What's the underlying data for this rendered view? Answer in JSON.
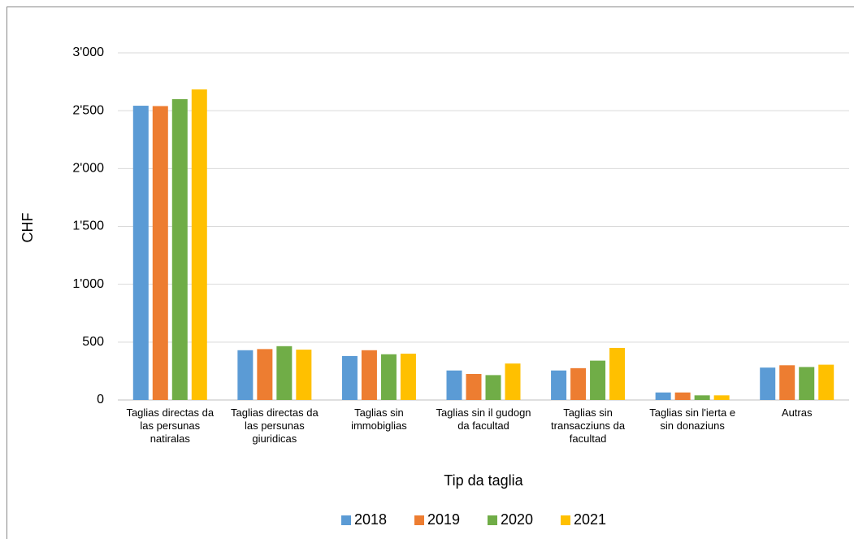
{
  "chart_data": {
    "type": "bar",
    "x_label": "Tip da taglia",
    "y_label": "CHF",
    "categories": [
      "Taglias directas da las persunas natiralas",
      "Taglias directas da las persunas giuridicas",
      "Taglias sin immobiglias",
      "Taglias sin il gudogn da facultad",
      "Taglias sin transacziuns da facultad",
      "Taglias sin l'ierta e sin donaziuns",
      "Autras"
    ],
    "series": [
      {
        "name": "2018",
        "color": "#5b9bd5",
        "values": [
          2543,
          430,
          380,
          255,
          255,
          65,
          280
        ]
      },
      {
        "name": "2019",
        "color": "#ed7d31",
        "values": [
          2540,
          440,
          430,
          225,
          275,
          65,
          300
        ]
      },
      {
        "name": "2020",
        "color": "#70ad47",
        "values": [
          2600,
          465,
          395,
          215,
          340,
          40,
          285
        ]
      },
      {
        "name": "2021",
        "color": "#ffc000",
        "values": [
          2684,
          435,
          400,
          315,
          450,
          40,
          305
        ]
      }
    ],
    "ylim": [
      0,
      3000
    ],
    "yticks": [
      0,
      500,
      {
        "value": 1000,
        "label": "1'000"
      },
      {
        "value": 1500,
        "label": "1'500"
      },
      {
        "value": 2000,
        "label": "2'000"
      },
      {
        "value": 2500,
        "label": "2'500"
      },
      {
        "value": 3000,
        "label": "3'000"
      }
    ],
    "grid": true,
    "legend": "bottom"
  }
}
